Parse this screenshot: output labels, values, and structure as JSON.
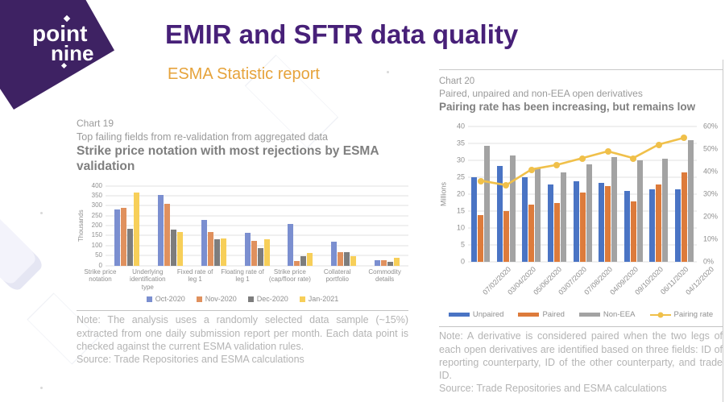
{
  "logo": {
    "word1": "point",
    "word2": "nine"
  },
  "header": {
    "title": "EMIR and SFTR data quality",
    "subtitle": "ESMA Statistic report"
  },
  "colors": {
    "brand_purple": "#3e2263",
    "title_purple": "#472078",
    "accent_orange": "#e6a33b"
  },
  "left_panel": {
    "note": "Note: The analysis uses a randomly selected data sample (~15%) extracted from one daily submission report per month. Each data point is checked against the current ESMA validation rules.",
    "source": "Source: Trade Repositories and ESMA calculations"
  },
  "right_panel": {
    "note": "Note: A derivative is considered paired when the two legs of each open derivatives are identified based on three fields: ID of reporting counterparty, ID of the other counterparty, and trade ID.",
    "source": "Source: Trade Repositories and ESMA calculations"
  },
  "chart_data": [
    {
      "id": "chart19",
      "type": "bar",
      "label": "Chart 19",
      "subtitle": "Top failing fields from re-validation from aggregated data",
      "title": "Strike price notation with most rejections by ESMA validation",
      "ylabel": "Thousands",
      "ylim": [
        0,
        400
      ],
      "ytick_step": 50,
      "grid": true,
      "legend_position": "bottom",
      "categories": [
        "Strike price notation",
        "Underlying identification type",
        "Fixed rate of leg 1",
        "Floating rate of leg 1",
        "Strike price (cap/floor rate)",
        "Collateral portfolio",
        "Commodity details"
      ],
      "series": [
        {
          "name": "Oct-2020",
          "color": "#7b8fd0",
          "values": [
            280,
            352,
            230,
            163,
            210,
            120,
            28
          ]
        },
        {
          "name": "Nov-2020",
          "color": "#e0915e",
          "values": [
            290,
            310,
            170,
            125,
            23,
            67,
            26
          ]
        },
        {
          "name": "Dec-2020",
          "color": "#7d7d7d",
          "values": [
            185,
            182,
            133,
            88,
            45,
            67,
            20
          ]
        },
        {
          "name": "Jan-2021",
          "color": "#f7cf59",
          "values": [
            365,
            167,
            135,
            132,
            65,
            47,
            38
          ]
        }
      ]
    },
    {
      "id": "chart20",
      "type": "combo",
      "label": "Chart 20",
      "subtitle": "Paired, unpaired and non-EEA open derivatives",
      "title": "Pairing rate has been increasing, but remains low",
      "ylabel_left": "Millions",
      "ylim_left": [
        0,
        40
      ],
      "ytick_step_left": 5,
      "ylim_right": [
        0,
        60
      ],
      "ytick_step_right": 10,
      "right_tick_suffix": "%",
      "grid": true,
      "legend_position": "bottom",
      "categories": [
        "07/02/2020",
        "03/04/2020",
        "05/06/2020",
        "03/07/2020",
        "07/08/2020",
        "04/09/2020",
        "09/10/2020",
        "06/11/2020",
        "04/12/2020"
      ],
      "bar_series": [
        {
          "name": "Unpaired",
          "color": "#4a74c4",
          "values": [
            25,
            28.5,
            25,
            23,
            24,
            23.5,
            21,
            21.5,
            21.5
          ]
        },
        {
          "name": "Paired",
          "color": "#dd7b3b",
          "values": [
            14,
            15,
            17,
            17.5,
            20.5,
            22.5,
            18,
            23,
            26.5
          ]
        },
        {
          "name": "Non-EEA",
          "color": "#a3a3a3",
          "values": [
            34.5,
            31.5,
            28,
            26.5,
            29,
            31,
            30,
            30.5,
            36
          ]
        }
      ],
      "line_series": {
        "name": "Pairing rate",
        "color": "#f0c04a",
        "axis": "right",
        "values": [
          36,
          34,
          41,
          43,
          46,
          49,
          46,
          52,
          55
        ]
      }
    }
  ]
}
